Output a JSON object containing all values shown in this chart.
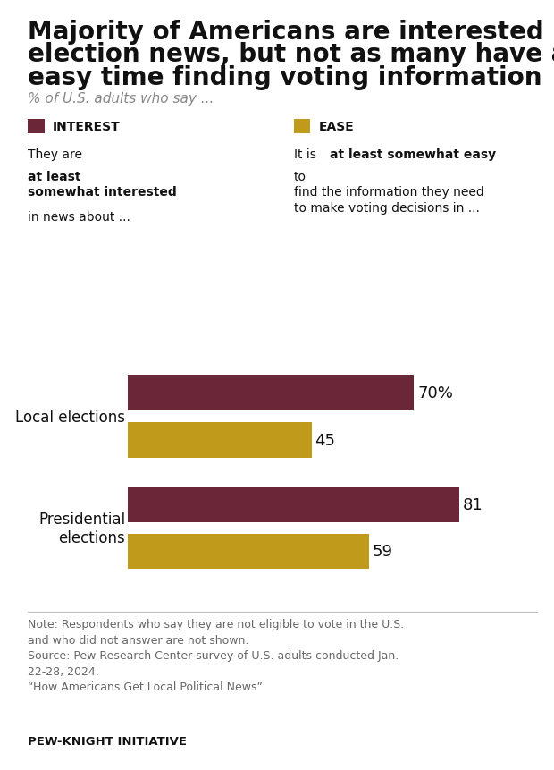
{
  "title_line1": "Majority of Americans are interested in",
  "title_line2": "election news, but not as many have an",
  "title_line3": "easy time finding voting information",
  "subtitle": "% of U.S. adults who say ...",
  "categories": [
    "Local elections",
    "Presidential\nelections"
  ],
  "interest_values": [
    70,
    81
  ],
  "ease_values": [
    45,
    59
  ],
  "interest_color": "#6B2737",
  "ease_color": "#C09A1A",
  "interest_label": "INTEREST",
  "ease_label": "EASE",
  "note_text": "Note: Respondents who say they are not eligible to vote in the U.S.\nand who did not answer are not shown.\nSource: Pew Research Center survey of U.S. adults conducted Jan.\n22-28, 2024.\n“How Americans Get Local Political News”",
  "footer": "PEW-KNIGHT INITIATIVE",
  "xlim_max": 92,
  "background_color": "#FFFFFF",
  "bar_height": 0.32,
  "bar_gap": 0.1,
  "value_fontsize": 13,
  "cat_fontsize": 12,
  "title_fontsize": 20,
  "subtitle_fontsize": 11,
  "legend_fontsize": 10,
  "note_fontsize": 9
}
